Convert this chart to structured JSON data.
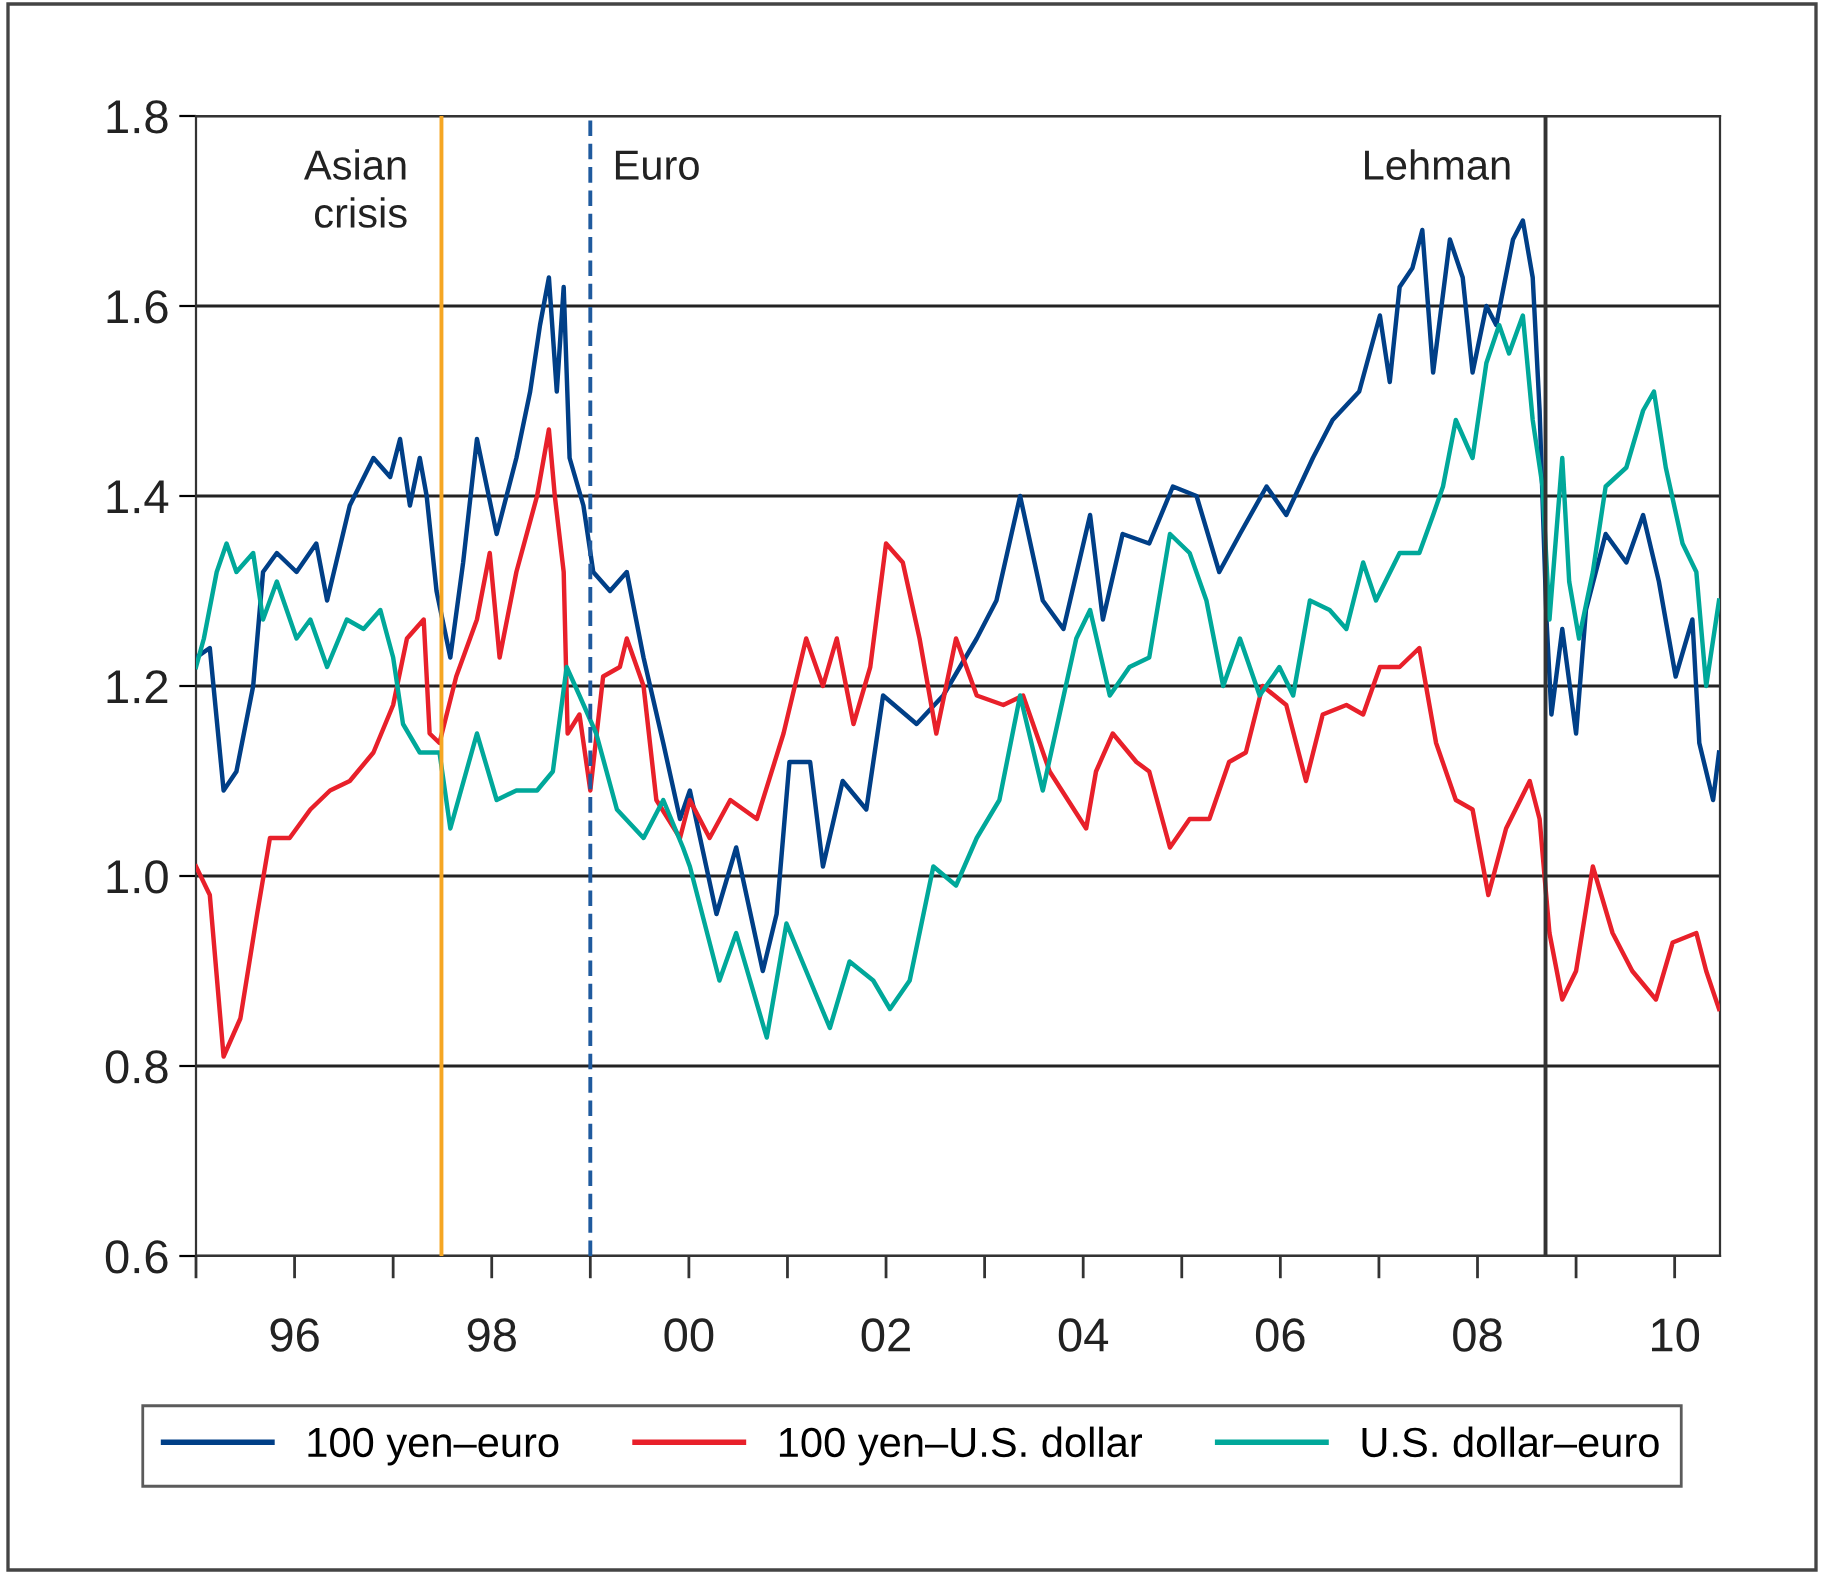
{
  "chart_data": {
    "type": "line",
    "xlim": [
      1995,
      2010.46
    ],
    "ylim": [
      0.6,
      1.8
    ],
    "xticks": [
      {
        "value": 1995,
        "label": null
      },
      {
        "value": 1996,
        "label": "96"
      },
      {
        "value": 1997,
        "label": null
      },
      {
        "value": 1998,
        "label": "98"
      },
      {
        "value": 1999,
        "label": null
      },
      {
        "value": 2000,
        "label": "00"
      },
      {
        "value": 2001,
        "label": null
      },
      {
        "value": 2002,
        "label": "02"
      },
      {
        "value": 2003,
        "label": null
      },
      {
        "value": 2004,
        "label": "04"
      },
      {
        "value": 2005,
        "label": null
      },
      {
        "value": 2006,
        "label": "06"
      },
      {
        "value": 2007,
        "label": null
      },
      {
        "value": 2008,
        "label": "08"
      },
      {
        "value": 2009,
        "label": null
      },
      {
        "value": 2010,
        "label": "10"
      }
    ],
    "yticks": [
      0.6,
      0.8,
      {
        "value": 1.0,
        "label": "1.0"
      },
      1.2,
      1.4,
      1.6,
      1.8
    ],
    "grid": "y",
    "legend": "bottom",
    "marker": "none",
    "line_style": "solid",
    "ref_lines": [
      {
        "axis": "x",
        "value": 1997.49,
        "label": "Asian\ncrisis",
        "color": "#f5a623",
        "line_style": "solid"
      },
      {
        "axis": "x",
        "value": 1999.0,
        "label": "Euro",
        "color": "#1f5a9e",
        "line_style": "dashed"
      },
      {
        "axis": "x",
        "value": 2008.69,
        "label": "Lehman",
        "color": "#333333",
        "line_style": "solid"
      }
    ],
    "series": [
      {
        "name": "100 yen–euro",
        "color": "#003f87",
        "x": [
          1995.0,
          1995.14,
          1995.28,
          1995.41,
          1995.58,
          1995.68,
          1995.82,
          1996.02,
          1996.22,
          1996.33,
          1996.56,
          1996.8,
          1996.97,
          1997.07,
          1997.17,
          1997.27,
          1997.34,
          1997.44,
          1997.58,
          1997.71,
          1997.85,
          1998.05,
          1998.25,
          1998.39,
          1998.49,
          1998.58,
          1998.66,
          1998.73,
          1998.79,
          1998.93,
          1999.03,
          1999.2,
          1999.37,
          1999.54,
          1999.74,
          1999.91,
          2000.01,
          2000.28,
          2000.48,
          2000.75,
          2000.89,
          2001.02,
          2001.23,
          2001.36,
          2001.56,
          2001.8,
          2001.97,
          2002.31,
          2002.58,
          2002.92,
          2003.12,
          2003.36,
          2003.59,
          2003.8,
          2004.07,
          2004.2,
          2004.4,
          2004.67,
          2004.91,
          2005.15,
          2005.38,
          2005.59,
          2005.86,
          2006.06,
          2006.33,
          2006.53,
          2006.8,
          2007.01,
          2007.11,
          2007.21,
          2007.34,
          2007.44,
          2007.55,
          2007.72,
          2007.85,
          2007.95,
          2008.09,
          2008.19,
          2008.36,
          2008.46,
          2008.56,
          2008.63,
          2008.7,
          2008.75,
          2008.86,
          2009.0,
          2009.1,
          2009.3,
          2009.51,
          2009.68,
          2009.84,
          2010.01,
          2010.18,
          2010.25,
          2010.39,
          2010.45
        ],
        "values": [
          1.23,
          1.24,
          1.09,
          1.11,
          1.2,
          1.32,
          1.34,
          1.32,
          1.35,
          1.29,
          1.39,
          1.44,
          1.42,
          1.46,
          1.39,
          1.44,
          1.4,
          1.3,
          1.23,
          1.33,
          1.46,
          1.36,
          1.44,
          1.51,
          1.58,
          1.63,
          1.51,
          1.62,
          1.44,
          1.39,
          1.32,
          1.3,
          1.32,
          1.23,
          1.14,
          1.06,
          1.09,
          0.96,
          1.03,
          0.9,
          0.96,
          1.12,
          1.12,
          1.01,
          1.1,
          1.07,
          1.19,
          1.16,
          1.19,
          1.25,
          1.29,
          1.4,
          1.29,
          1.26,
          1.38,
          1.27,
          1.36,
          1.35,
          1.41,
          1.4,
          1.32,
          1.36,
          1.41,
          1.38,
          1.44,
          1.48,
          1.51,
          1.59,
          1.52,
          1.62,
          1.64,
          1.68,
          1.53,
          1.67,
          1.63,
          1.53,
          1.6,
          1.58,
          1.67,
          1.69,
          1.63,
          1.49,
          1.27,
          1.17,
          1.26,
          1.15,
          1.28,
          1.36,
          1.33,
          1.38,
          1.31,
          1.21,
          1.27,
          1.14,
          1.08,
          1.13
        ]
      },
      {
        "name": "100 yen–U.S. dollar",
        "color": "#e8202a",
        "x": [
          1995.0,
          1995.14,
          1995.28,
          1995.45,
          1995.62,
          1995.75,
          1995.95,
          1996.16,
          1996.36,
          1996.56,
          1996.8,
          1997.0,
          1997.14,
          1997.31,
          1997.37,
          1997.47,
          1997.64,
          1997.85,
          1997.98,
          1998.08,
          1998.25,
          1998.46,
          1998.58,
          1998.64,
          1998.73,
          1998.77,
          1998.89,
          1999.0,
          1999.13,
          1999.3,
          1999.37,
          1999.54,
          1999.67,
          1999.91,
          2000.01,
          2000.21,
          2000.42,
          2000.69,
          2000.96,
          2001.19,
          2001.36,
          2001.5,
          2001.67,
          2001.84,
          2002.0,
          2002.17,
          2002.34,
          2002.51,
          2002.71,
          2002.92,
          2003.19,
          2003.39,
          2003.66,
          2004.03,
          2004.13,
          2004.3,
          2004.54,
          2004.67,
          2004.88,
          2005.08,
          2005.28,
          2005.48,
          2005.65,
          2005.82,
          2006.06,
          2006.26,
          2006.43,
          2006.67,
          2006.84,
          2007.01,
          2007.21,
          2007.41,
          2007.58,
          2007.78,
          2007.95,
          2008.11,
          2008.29,
          2008.53,
          2008.63,
          2008.73,
          2008.86,
          2009.0,
          2009.17,
          2009.37,
          2009.57,
          2009.81,
          2009.98,
          2010.22,
          2010.32,
          2010.45
        ],
        "values": [
          1.01,
          0.98,
          0.81,
          0.85,
          0.96,
          1.04,
          1.04,
          1.07,
          1.09,
          1.1,
          1.13,
          1.18,
          1.25,
          1.27,
          1.15,
          1.14,
          1.21,
          1.27,
          1.34,
          1.23,
          1.32,
          1.4,
          1.47,
          1.4,
          1.32,
          1.15,
          1.17,
          1.09,
          1.21,
          1.22,
          1.25,
          1.2,
          1.08,
          1.04,
          1.08,
          1.04,
          1.08,
          1.06,
          1.15,
          1.25,
          1.2,
          1.25,
          1.16,
          1.22,
          1.35,
          1.33,
          1.25,
          1.15,
          1.25,
          1.19,
          1.18,
          1.19,
          1.11,
          1.05,
          1.11,
          1.15,
          1.12,
          1.11,
          1.03,
          1.06,
          1.06,
          1.12,
          1.13,
          1.2,
          1.18,
          1.1,
          1.17,
          1.18,
          1.17,
          1.22,
          1.22,
          1.24,
          1.14,
          1.08,
          1.07,
          0.98,
          1.05,
          1.1,
          1.06,
          0.94,
          0.87,
          0.9,
          1.01,
          0.94,
          0.9,
          0.87,
          0.93,
          0.94,
          0.9,
          0.86
        ]
      },
      {
        "name": "U.S. dollar–euro",
        "color": "#00a89a",
        "x": [
          1995.0,
          1995.08,
          1995.21,
          1995.31,
          1995.41,
          1995.58,
          1995.68,
          1995.82,
          1996.02,
          1996.16,
          1996.33,
          1996.53,
          1996.7,
          1996.87,
          1997.0,
          1997.1,
          1997.27,
          1997.47,
          1997.58,
          1997.85,
          1998.05,
          1998.25,
          1998.46,
          1998.62,
          1998.76,
          1998.89,
          1999.06,
          1999.27,
          1999.54,
          1999.74,
          1999.94,
          2000.01,
          2000.31,
          2000.48,
          2000.79,
          2000.99,
          2001.23,
          2001.43,
          2001.63,
          2001.87,
          2002.04,
          2002.24,
          2002.48,
          2002.71,
          2002.92,
          2003.15,
          2003.36,
          2003.59,
          2003.76,
          2003.93,
          2004.07,
          2004.27,
          2004.47,
          2004.67,
          2004.88,
          2005.08,
          2005.25,
          2005.42,
          2005.59,
          2005.79,
          2005.99,
          2006.13,
          2006.3,
          2006.5,
          2006.67,
          2006.84,
          2006.97,
          2007.21,
          2007.41,
          2007.55,
          2007.65,
          2007.78,
          2007.95,
          2008.09,
          2008.22,
          2008.32,
          2008.46,
          2008.56,
          2008.66,
          2008.73,
          2008.86,
          2008.93,
          2009.03,
          2009.17,
          2009.3,
          2009.51,
          2009.68,
          2009.79,
          2009.91,
          2010.08,
          2010.22,
          2010.32,
          2010.45
        ],
        "values": [
          1.22,
          1.25,
          1.32,
          1.35,
          1.32,
          1.34,
          1.27,
          1.31,
          1.25,
          1.27,
          1.22,
          1.27,
          1.26,
          1.28,
          1.23,
          1.16,
          1.13,
          1.13,
          1.05,
          1.15,
          1.08,
          1.09,
          1.09,
          1.11,
          1.22,
          1.19,
          1.15,
          1.07,
          1.04,
          1.08,
          1.03,
          1.01,
          0.89,
          0.94,
          0.83,
          0.95,
          0.89,
          0.84,
          0.91,
          0.89,
          0.86,
          0.89,
          1.01,
          0.99,
          1.04,
          1.08,
          1.19,
          1.09,
          1.17,
          1.25,
          1.28,
          1.19,
          1.22,
          1.23,
          1.36,
          1.34,
          1.29,
          1.2,
          1.25,
          1.19,
          1.22,
          1.19,
          1.29,
          1.28,
          1.26,
          1.33,
          1.29,
          1.34,
          1.34,
          1.38,
          1.41,
          1.48,
          1.44,
          1.54,
          1.58,
          1.55,
          1.59,
          1.48,
          1.41,
          1.27,
          1.44,
          1.31,
          1.25,
          1.32,
          1.41,
          1.43,
          1.49,
          1.51,
          1.43,
          1.35,
          1.32,
          1.2,
          1.29
        ]
      }
    ]
  }
}
